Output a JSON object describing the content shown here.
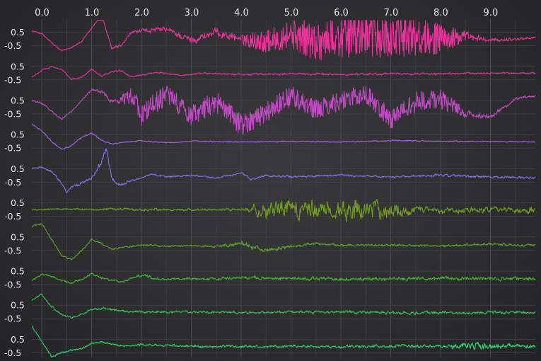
{
  "chart_data": {
    "type": "line",
    "grid": true,
    "xlim": [
      -0.2,
      9.9
    ],
    "x_tick_labels": [
      "0.0",
      "1.0",
      "2.0",
      "3.0",
      "4.0",
      "5.0",
      "6.0",
      "7.0",
      "8.0",
      "9.0"
    ],
    "x_ticks": [
      0,
      1,
      2,
      3,
      4,
      5,
      6,
      7,
      8,
      9
    ],
    "row_ylim": [
      -1,
      1
    ],
    "y_tick_labels": [
      "0.5",
      "-0.5"
    ],
    "y_ticks": [
      0.5,
      -0.5
    ],
    "series": [
      {
        "color": "#e8329a",
        "style": "chaotic",
        "x": [
          -0.2,
          0.0,
          0.2,
          0.4,
          0.6,
          0.8,
          1.0,
          1.2,
          1.4,
          1.6,
          1.8,
          2.0,
          2.5,
          3.0,
          3.5,
          4.0,
          4.5,
          5.0,
          5.5,
          6.0,
          6.5,
          7.0,
          7.5,
          8.0,
          8.5,
          9.0,
          9.5,
          9.9
        ],
        "values": [
          0.6,
          0.4,
          -0.3,
          -0.9,
          -0.6,
          -0.2,
          0.8,
          1.8,
          -0.7,
          -0.5,
          0.5,
          0.6,
          0.7,
          -0.1,
          0.5,
          0.0,
          -0.2,
          0.4,
          -0.2,
          0.2,
          0.3,
          0.1,
          0.2,
          0.0,
          0.1,
          -0.1,
          0.0,
          0.1
        ],
        "noise": [
          0.05,
          0.05,
          0.05,
          0.05,
          0.05,
          0.05,
          0.05,
          0.05,
          0.1,
          0.1,
          0.1,
          0.15,
          0.2,
          0.25,
          0.3,
          0.3,
          0.5,
          0.7,
          0.9,
          1.0,
          1.0,
          1.0,
          0.9,
          0.7,
          0.3,
          0.15,
          0.1,
          0.1
        ]
      },
      {
        "color": "#d6339f",
        "style": "damped",
        "x": [
          -0.2,
          0.0,
          0.2,
          0.4,
          0.6,
          0.8,
          1.0,
          1.2,
          1.4,
          1.6,
          1.8,
          2.0,
          2.4,
          2.8,
          3.2,
          3.6,
          4.0,
          5.0,
          6.0,
          7.0,
          8.0,
          9.0,
          9.9
        ],
        "values": [
          -0.3,
          0.2,
          0.5,
          0.3,
          -0.5,
          -0.3,
          0.3,
          -0.2,
          0.1,
          0.2,
          -0.3,
          -0.1,
          0.05,
          -0.2,
          0.0,
          -0.05,
          -0.1,
          -0.05,
          -0.1,
          -0.05,
          -0.05,
          0.0,
          0.0
        ],
        "noise": [
          0.05,
          0.05,
          0.05,
          0.05,
          0.05,
          0.05,
          0.05,
          0.06,
          0.06,
          0.06,
          0.06,
          0.06,
          0.05,
          0.05,
          0.05,
          0.05,
          0.06,
          0.07,
          0.07,
          0.07,
          0.07,
          0.07,
          0.07
        ]
      },
      {
        "color": "#c049c3",
        "style": "chaotic",
        "x": [
          -0.2,
          0.0,
          0.2,
          0.4,
          0.6,
          0.8,
          1.0,
          1.2,
          1.4,
          1.6,
          1.8,
          2.0,
          2.5,
          3.0,
          3.5,
          4.0,
          4.5,
          5.0,
          5.5,
          6.0,
          6.5,
          7.0,
          7.5,
          8.0,
          8.5,
          9.0,
          9.5,
          9.9
        ],
        "values": [
          0.5,
          0.3,
          -0.3,
          -0.9,
          -0.3,
          0.5,
          1.3,
          1.2,
          0.4,
          0.6,
          1.0,
          -0.6,
          1.0,
          -0.6,
          0.4,
          -1.3,
          -0.4,
          0.9,
          -0.2,
          0.5,
          1.0,
          -0.9,
          0.4,
          0.6,
          -0.5,
          -0.7,
          0.6,
          0.9
        ],
        "noise": [
          0.06,
          0.06,
          0.06,
          0.06,
          0.06,
          0.08,
          0.1,
          0.15,
          0.2,
          0.3,
          0.45,
          0.5,
          0.5,
          0.5,
          0.5,
          0.5,
          0.5,
          0.5,
          0.45,
          0.45,
          0.45,
          0.45,
          0.5,
          0.45,
          0.25,
          0.15,
          0.1,
          0.1
        ]
      },
      {
        "color": "#9b64df",
        "style": "damped",
        "x": [
          -0.2,
          0.0,
          0.2,
          0.4,
          0.6,
          0.8,
          1.0,
          1.2,
          1.4,
          1.6,
          1.8,
          2.0,
          2.5,
          3.0,
          4.0,
          5.0,
          6.0,
          7.0,
          8.0,
          9.0,
          9.9
        ],
        "values": [
          1.3,
          0.8,
          0.0,
          -0.6,
          -0.3,
          0.3,
          0.6,
          0.1,
          -0.2,
          -0.1,
          0.0,
          0.05,
          -0.1,
          0.0,
          -0.05,
          0.0,
          -0.05,
          0.05,
          0.0,
          0.0,
          -0.05
        ],
        "noise": [
          0.05,
          0.05,
          0.05,
          0.05,
          0.05,
          0.05,
          0.05,
          0.04,
          0.04,
          0.04,
          0.04,
          0.04,
          0.04,
          0.04,
          0.04,
          0.04,
          0.04,
          0.04,
          0.04,
          0.04,
          0.04
        ]
      },
      {
        "color": "#7a72e8",
        "style": "damped",
        "x": [
          -0.2,
          0.0,
          0.2,
          0.4,
          0.5,
          0.6,
          0.8,
          1.0,
          1.2,
          1.3,
          1.4,
          1.6,
          1.8,
          2.0,
          2.2,
          2.5,
          3.0,
          3.5,
          4.0,
          4.2,
          4.5,
          5.0,
          6.0,
          7.0,
          8.0,
          9.0,
          9.9
        ],
        "values": [
          0.5,
          0.6,
          0.3,
          -0.6,
          -1.2,
          -0.9,
          -0.6,
          -0.2,
          1.0,
          2.0,
          -0.2,
          -0.7,
          -0.3,
          -0.2,
          0.1,
          -0.1,
          0.0,
          -0.2,
          0.2,
          -0.3,
          0.0,
          -0.1,
          0.0,
          -0.1,
          0.0,
          -0.1,
          -0.2
        ],
        "noise": [
          0.06,
          0.06,
          0.06,
          0.08,
          0.1,
          0.1,
          0.1,
          0.1,
          0.2,
          0.2,
          0.15,
          0.1,
          0.08,
          0.06,
          0.06,
          0.06,
          0.06,
          0.06,
          0.06,
          0.06,
          0.06,
          0.07,
          0.07,
          0.08,
          0.08,
          0.08,
          0.08
        ]
      },
      {
        "color": "#6f9a1f",
        "style": "damped",
        "x": [
          -0.2,
          0.0,
          0.5,
          1.0,
          1.5,
          2.0,
          2.5,
          3.0,
          3.5,
          4.0,
          4.5,
          5.0,
          5.5,
          6.0,
          6.5,
          7.0,
          7.5,
          8.0,
          8.5,
          9.0,
          9.9
        ],
        "values": [
          0.0,
          0.0,
          0.05,
          0.0,
          0.05,
          0.0,
          0.0,
          0.0,
          0.0,
          0.0,
          0.0,
          0.0,
          0.0,
          0.0,
          0.0,
          0.0,
          0.0,
          0.0,
          0.0,
          0.0,
          0.0
        ],
        "noise": [
          0.05,
          0.05,
          0.05,
          0.06,
          0.08,
          0.08,
          0.08,
          0.08,
          0.08,
          0.1,
          0.55,
          0.6,
          0.6,
          0.6,
          0.7,
          0.5,
          0.25,
          0.2,
          0.2,
          0.2,
          0.25
        ]
      },
      {
        "color": "#5aa32a",
        "style": "damped",
        "x": [
          -0.2,
          0.0,
          0.2,
          0.4,
          0.6,
          0.8,
          1.0,
          1.2,
          1.4,
          1.6,
          2.0,
          2.5,
          3.0,
          3.5,
          4.0,
          4.5,
          5.0,
          5.5,
          6.0,
          7.0,
          8.0,
          9.0,
          9.9
        ],
        "values": [
          1.3,
          1.5,
          0.3,
          -0.9,
          -1.2,
          -0.5,
          0.3,
          0.0,
          -0.4,
          -0.3,
          -0.1,
          -0.2,
          -0.15,
          -0.2,
          0.0,
          -0.5,
          -0.2,
          0.0,
          -0.1,
          -0.1,
          -0.15,
          -0.05,
          -0.1
        ],
        "noise": [
          0.06,
          0.06,
          0.06,
          0.06,
          0.06,
          0.06,
          0.06,
          0.06,
          0.06,
          0.06,
          0.06,
          0.06,
          0.06,
          0.08,
          0.15,
          0.15,
          0.1,
          0.08,
          0.08,
          0.08,
          0.08,
          0.08,
          0.1
        ]
      },
      {
        "color": "#44b030",
        "style": "damped",
        "x": [
          -0.2,
          0.0,
          0.2,
          0.4,
          0.6,
          0.8,
          1.0,
          1.2,
          1.6,
          2.0,
          2.2,
          2.4,
          3.0,
          3.5,
          4.0,
          5.0,
          6.0,
          7.0,
          8.0,
          9.0,
          9.9
        ],
        "values": [
          -0.2,
          0.3,
          0.1,
          -0.2,
          -0.4,
          -0.1,
          0.3,
          0.0,
          -0.3,
          0.2,
          0.0,
          -0.1,
          -0.05,
          -0.1,
          0.0,
          -0.05,
          -0.1,
          -0.05,
          -0.05,
          -0.05,
          -0.1
        ],
        "noise": [
          0.06,
          0.06,
          0.06,
          0.06,
          0.06,
          0.06,
          0.06,
          0.07,
          0.08,
          0.1,
          0.1,
          0.09,
          0.09,
          0.1,
          0.11,
          0.11,
          0.12,
          0.12,
          0.12,
          0.12,
          0.13
        ]
      },
      {
        "color": "#36bd55",
        "style": "damped",
        "x": [
          -0.2,
          0.0,
          0.2,
          0.4,
          0.6,
          0.8,
          1.0,
          1.2,
          1.5,
          2.0,
          3.0,
          4.0,
          5.0,
          6.0,
          7.0,
          8.0,
          9.0,
          9.9
        ],
        "values": [
          0.9,
          1.3,
          0.4,
          -0.2,
          -0.4,
          -0.2,
          0.2,
          0.3,
          0.1,
          0.0,
          0.0,
          -0.05,
          0.0,
          0.0,
          -0.05,
          -0.05,
          -0.05,
          -0.05
        ],
        "noise": [
          0.06,
          0.06,
          0.06,
          0.06,
          0.06,
          0.07,
          0.08,
          0.08,
          0.08,
          0.08,
          0.08,
          0.08,
          0.08,
          0.09,
          0.1,
          0.11,
          0.1,
          0.1
        ]
      },
      {
        "color": "#2cce6f",
        "style": "damped",
        "x": [
          -0.2,
          0.0,
          0.2,
          0.4,
          0.6,
          0.8,
          1.0,
          1.2,
          1.6,
          2.0,
          3.0,
          4.0,
          5.0,
          6.0,
          7.0,
          8.0,
          8.5,
          9.0,
          9.5,
          9.9
        ],
        "values": [
          1.5,
          0.3,
          -0.8,
          -0.5,
          -0.3,
          -0.2,
          0.2,
          0.3,
          0.0,
          0.1,
          0.0,
          -0.05,
          0.0,
          -0.05,
          0.0,
          0.0,
          0.0,
          0.0,
          0.0,
          -0.05
        ],
        "noise": [
          0.06,
          0.06,
          0.06,
          0.06,
          0.06,
          0.06,
          0.06,
          0.06,
          0.06,
          0.07,
          0.08,
          0.08,
          0.08,
          0.09,
          0.1,
          0.1,
          0.22,
          0.22,
          0.12,
          0.12
        ]
      }
    ]
  }
}
